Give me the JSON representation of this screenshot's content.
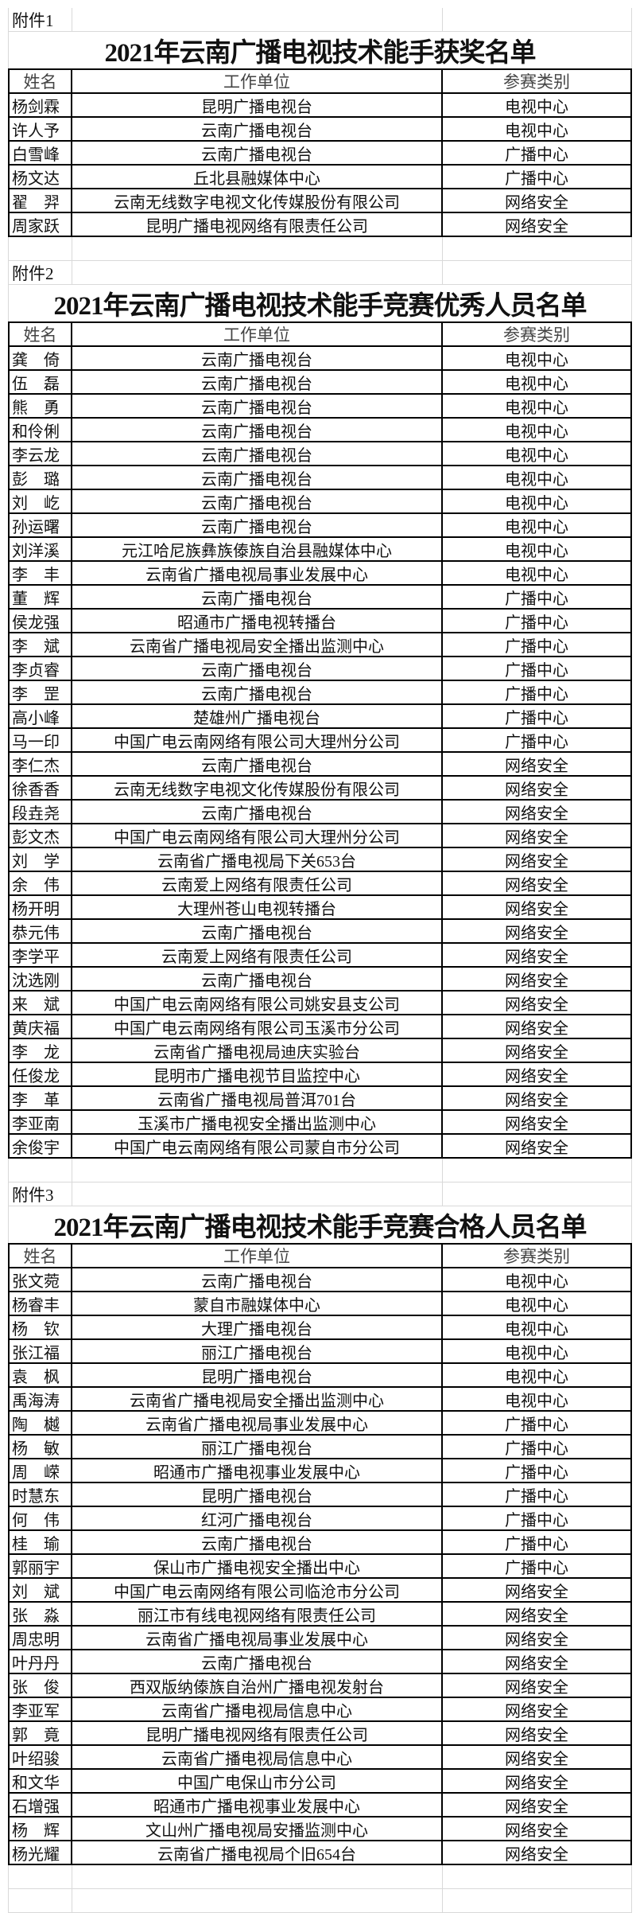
{
  "headers": {
    "name": "姓名",
    "unit": "工作单位",
    "category": "参赛类别"
  },
  "sections": [
    {
      "attachment": "附件1",
      "title": "2021年云南广播电视技术能手获奖名单",
      "rows": [
        [
          "杨剑霖",
          "昆明广播电视台",
          "电视中心"
        ],
        [
          "许人予",
          "云南广播电视台",
          "电视中心"
        ],
        [
          "白雪峰",
          "云南广播电视台",
          "广播中心"
        ],
        [
          "杨文达",
          "丘北县融媒体中心",
          "广播中心"
        ],
        [
          "翟　羿",
          "云南无线数字电视文化传媒股份有限公司",
          "网络安全"
        ],
        [
          "周家跃",
          "昆明广播电视网络有限责任公司",
          "网络安全"
        ]
      ]
    },
    {
      "attachment": "附件2",
      "title": "2021年云南广播电视技术能手竞赛优秀人员名单",
      "rows": [
        [
          "龚　倚",
          "云南广播电视台",
          "电视中心"
        ],
        [
          "伍　磊",
          "云南广播电视台",
          "电视中心"
        ],
        [
          "熊　勇",
          "云南广播电视台",
          "电视中心"
        ],
        [
          "和伶俐",
          "云南广播电视台",
          "电视中心"
        ],
        [
          "李云龙",
          "云南广播电视台",
          "电视中心"
        ],
        [
          "彭　璐",
          "云南广播电视台",
          "电视中心"
        ],
        [
          "刘　屹",
          "云南广播电视台",
          "电视中心"
        ],
        [
          "孙运曙",
          "云南广播电视台",
          "电视中心"
        ],
        [
          "刘洋溪",
          "元江哈尼族彝族傣族自治县融媒体中心",
          "电视中心"
        ],
        [
          "李　丰",
          "云南省广播电视局事业发展中心",
          "电视中心"
        ],
        [
          "董　辉",
          "云南广播电视台",
          "广播中心"
        ],
        [
          "侯龙强",
          "昭通市广播电视转播台",
          "广播中心"
        ],
        [
          "李　斌",
          "云南省广播电视局安全播出监测中心",
          "广播中心"
        ],
        [
          "李贞睿",
          "云南广播电视台",
          "广播中心"
        ],
        [
          "李　罡",
          "云南广播电视台",
          "广播中心"
        ],
        [
          "高小峰",
          "楚雄州广播电视台",
          "广播中心"
        ],
        [
          "马一印",
          "中国广电云南网络有限公司大理州分公司",
          "广播中心"
        ],
        [
          "李仁杰",
          "云南广播电视台",
          "网络安全"
        ],
        [
          "徐香香",
          "云南无线数字电视文化传媒股份有限公司",
          "网络安全"
        ],
        [
          "段垚尧",
          "云南广播电视台",
          "网络安全"
        ],
        [
          "彭文杰",
          "中国广电云南网络有限公司大理州分公司",
          "网络安全"
        ],
        [
          "刘　学",
          "云南省广播电视局下关653台",
          "网络安全"
        ],
        [
          "余　伟",
          "云南爱上网络有限责任公司",
          "网络安全"
        ],
        [
          "杨开明",
          "大理州苍山电视转播台",
          "网络安全"
        ],
        [
          "恭元伟",
          "云南广播电视台",
          "网络安全"
        ],
        [
          "李学平",
          "云南爱上网络有限责任公司",
          "网络安全"
        ],
        [
          "沈选刚",
          "云南广播电视台",
          "网络安全"
        ],
        [
          "来　斌",
          "中国广电云南网络有限公司姚安县支公司",
          "网络安全"
        ],
        [
          "黄庆福",
          "中国广电云南网络有限公司玉溪市分公司",
          "网络安全"
        ],
        [
          "李　龙",
          "云南省广播电视局迪庆实验台",
          "网络安全"
        ],
        [
          "任俊龙",
          "昆明市广播电视节目监控中心",
          "网络安全"
        ],
        [
          "李　革",
          "云南省广播电视局普洱701台",
          "网络安全"
        ],
        [
          "李亚南",
          "玉溪市广播电视安全播出监测中心",
          "网络安全"
        ],
        [
          "余俊宇",
          "中国广电云南网络有限公司蒙自市分公司",
          "网络安全"
        ]
      ]
    },
    {
      "attachment": "附件3",
      "title": "2021年云南广播电视技术能手竞赛合格人员名单",
      "rows": [
        [
          "张文菀",
          "云南广播电视台",
          "电视中心"
        ],
        [
          "杨睿丰",
          "蒙自市融媒体中心",
          "电视中心"
        ],
        [
          "杨　钦",
          "大理广播电视台",
          "电视中心"
        ],
        [
          "张江福",
          "丽江广播电视台",
          "电视中心"
        ],
        [
          "袁　枫",
          "昆明广播电视台",
          "电视中心"
        ],
        [
          "禹海涛",
          "云南省广播电视局安全播出监测中心",
          "电视中心"
        ],
        [
          "陶　樾",
          "云南省广播电视局事业发展中心",
          "广播中心"
        ],
        [
          "杨　敏",
          "丽江广播电视台",
          "广播中心"
        ],
        [
          "周　嵘",
          "昭通市广播电视事业发展中心",
          "广播中心"
        ],
        [
          "时慧东",
          "昆明广播电视台",
          "广播中心"
        ],
        [
          "何　伟",
          "红河广播电视台",
          "广播中心"
        ],
        [
          "桂　瑜",
          "云南广播电视台",
          "广播中心"
        ],
        [
          "郭丽宇",
          "保山市广播电视安全播出中心",
          "广播中心"
        ],
        [
          "刘　斌",
          "中国广电云南网络有限公司临沧市分公司",
          "网络安全"
        ],
        [
          "张　淼",
          "丽江市有线电视网络有限责任公司",
          "网络安全"
        ],
        [
          "周忠明",
          "云南省广播电视局事业发展中心",
          "网络安全"
        ],
        [
          "叶丹丹",
          "云南广播电视台",
          "网络安全"
        ],
        [
          "张　俊",
          "西双版纳傣族自治州广播电视发射台",
          "网络安全"
        ],
        [
          "李亚军",
          "云南省广播电视局信息中心",
          "网络安全"
        ],
        [
          "郭　竟",
          "昆明广播电视网络有限责任公司",
          "网络安全"
        ],
        [
          "叶绍骏",
          "云南省广播电视局信息中心",
          "网络安全"
        ],
        [
          "和文华",
          "中国广电保山市分公司",
          "网络安全"
        ],
        [
          "石增强",
          "昭通市广播电视事业发展中心",
          "网络安全"
        ],
        [
          "杨　辉",
          "文山州广播电视局安播监测中心",
          "网络安全"
        ],
        [
          "杨光耀",
          "云南省广播电视局个旧654台",
          "网络安全"
        ]
      ]
    }
  ]
}
